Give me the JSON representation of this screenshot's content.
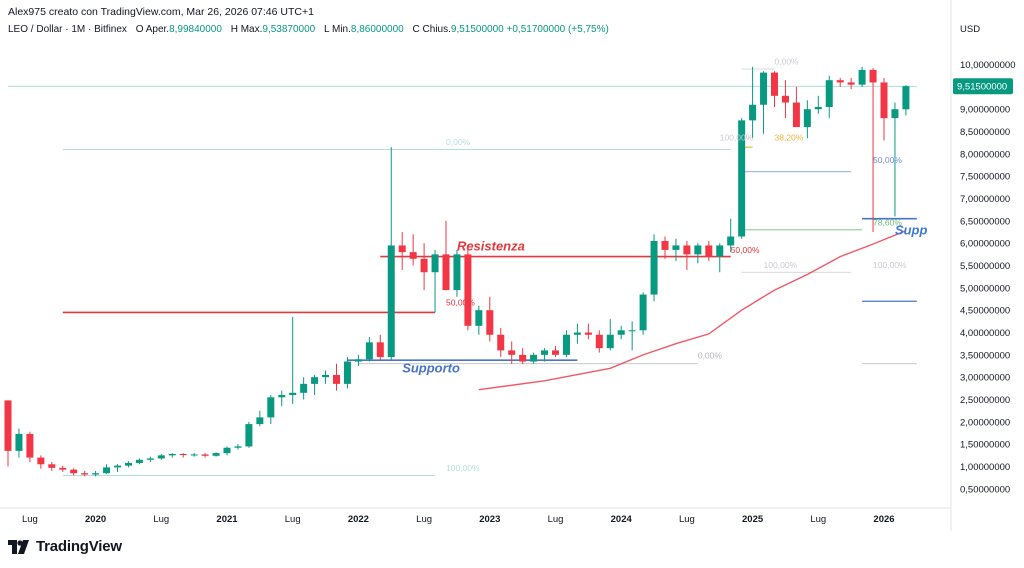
{
  "header": {
    "author_line": "Alex975 creato con TradingView.com, Mar 26, 2026 07:46 UTC+1"
  },
  "symbol": {
    "name": "LEO / Dollar · 1M · Bitfinex",
    "open_label": "O",
    "open_prefix": "Aper.",
    "open_value": "8,99840000",
    "high_label": "H",
    "high_prefix": "Max.",
    "high_value": "9,53870000",
    "low_label": "L",
    "low_prefix": "Min.",
    "low_value": "8,86000000",
    "close_label": "C",
    "close_prefix": "Chius.",
    "close_value": "9,51500000",
    "change": "+0,51700000 (+5,75%)"
  },
  "brand": {
    "name": "TradingView",
    "icon": "tradingview-logo-icon"
  },
  "colors": {
    "up": "#089981",
    "down": "#f23645",
    "ma": "#f05a66",
    "support": "#4a74c9",
    "resistance": "#e0393e",
    "bg": "#ffffff"
  },
  "chart_data": {
    "type": "candlestick",
    "currency_label": "USD",
    "y_scale": "linear",
    "ylim": [
      0.25,
      10.55
    ],
    "y_ticks": [
      {
        "v": 10.0,
        "label": "10,00000000"
      },
      {
        "v": 9.5,
        "label": "9,50000000"
      },
      {
        "v": 9.0,
        "label": "9,00000000"
      },
      {
        "v": 8.5,
        "label": "8,50000000"
      },
      {
        "v": 8.0,
        "label": "8,00000000"
      },
      {
        "v": 7.5,
        "label": "7,50000000"
      },
      {
        "v": 7.0,
        "label": "7,00000000"
      },
      {
        "v": 6.5,
        "label": "6,50000000"
      },
      {
        "v": 6.0,
        "label": "6,00000000"
      },
      {
        "v": 5.5,
        "label": "5,50000000"
      },
      {
        "v": 5.0,
        "label": "5,00000000"
      },
      {
        "v": 4.5,
        "label": "4,50000000"
      },
      {
        "v": 4.0,
        "label": "4,00000000"
      },
      {
        "v": 3.5,
        "label": "3,50000000"
      },
      {
        "v": 3.0,
        "label": "3,00000000"
      },
      {
        "v": 2.5,
        "label": "2,50000000"
      },
      {
        "v": 2.0,
        "label": "2,00000000"
      },
      {
        "v": 1.5,
        "label": "1,50000000"
      },
      {
        "v": 1.0,
        "label": "1,00000000"
      },
      {
        "v": 0.5,
        "label": "0,50000000"
      }
    ],
    "last_price": {
      "v": 9.515,
      "label": "9,51500000"
    },
    "x_start": "2019-05",
    "x_ticks": [
      {
        "date": "2019-07",
        "label": "Lug",
        "bold": false
      },
      {
        "date": "2020-01",
        "label": "2020",
        "bold": true
      },
      {
        "date": "2020-07",
        "label": "Lug",
        "bold": false
      },
      {
        "date": "2021-01",
        "label": "2021",
        "bold": true
      },
      {
        "date": "2021-07",
        "label": "Lug",
        "bold": false
      },
      {
        "date": "2022-01",
        "label": "2022",
        "bold": true
      },
      {
        "date": "2022-07",
        "label": "Lug",
        "bold": false
      },
      {
        "date": "2023-01",
        "label": "2023",
        "bold": true
      },
      {
        "date": "2023-07",
        "label": "Lug",
        "bold": false
      },
      {
        "date": "2024-01",
        "label": "2024",
        "bold": true
      },
      {
        "date": "2024-07",
        "label": "Lug",
        "bold": false
      },
      {
        "date": "2025-01",
        "label": "2025",
        "bold": true
      },
      {
        "date": "2025-07",
        "label": "Lug",
        "bold": false
      },
      {
        "date": "2026-01",
        "label": "2026",
        "bold": true
      }
    ],
    "candles": [
      {
        "d": "2019-05",
        "o": 2.48,
        "h": 2.48,
        "l": 1.0,
        "c": 1.35
      },
      {
        "d": "2019-06",
        "o": 1.35,
        "h": 1.85,
        "l": 1.2,
        "c": 1.73
      },
      {
        "d": "2019-07",
        "o": 1.73,
        "h": 1.78,
        "l": 1.1,
        "c": 1.2
      },
      {
        "d": "2019-08",
        "o": 1.2,
        "h": 1.25,
        "l": 0.95,
        "c": 1.05
      },
      {
        "d": "2019-09",
        "o": 1.05,
        "h": 1.1,
        "l": 0.9,
        "c": 0.97
      },
      {
        "d": "2019-10",
        "o": 0.97,
        "h": 1.02,
        "l": 0.88,
        "c": 0.93
      },
      {
        "d": "2019-11",
        "o": 0.93,
        "h": 0.96,
        "l": 0.8,
        "c": 0.85
      },
      {
        "d": "2019-12",
        "o": 0.85,
        "h": 0.9,
        "l": 0.78,
        "c": 0.82
      },
      {
        "d": "2020-01",
        "o": 0.82,
        "h": 0.9,
        "l": 0.78,
        "c": 0.85
      },
      {
        "d": "2020-02",
        "o": 0.85,
        "h": 1.05,
        "l": 0.83,
        "c": 0.98
      },
      {
        "d": "2020-03",
        "o": 0.98,
        "h": 1.05,
        "l": 0.88,
        "c": 1.02
      },
      {
        "d": "2020-04",
        "o": 1.02,
        "h": 1.12,
        "l": 0.98,
        "c": 1.08
      },
      {
        "d": "2020-05",
        "o": 1.08,
        "h": 1.18,
        "l": 1.05,
        "c": 1.15
      },
      {
        "d": "2020-06",
        "o": 1.15,
        "h": 1.22,
        "l": 1.1,
        "c": 1.18
      },
      {
        "d": "2020-07",
        "o": 1.18,
        "h": 1.28,
        "l": 1.15,
        "c": 1.25
      },
      {
        "d": "2020-08",
        "o": 1.25,
        "h": 1.3,
        "l": 1.2,
        "c": 1.28
      },
      {
        "d": "2020-09",
        "o": 1.28,
        "h": 1.3,
        "l": 1.2,
        "c": 1.26
      },
      {
        "d": "2020-10",
        "o": 1.26,
        "h": 1.3,
        "l": 1.22,
        "c": 1.27
      },
      {
        "d": "2020-11",
        "o": 1.27,
        "h": 1.3,
        "l": 1.2,
        "c": 1.24
      },
      {
        "d": "2020-12",
        "o": 1.24,
        "h": 1.32,
        "l": 1.22,
        "c": 1.3
      },
      {
        "d": "2021-01",
        "o": 1.3,
        "h": 1.45,
        "l": 1.25,
        "c": 1.42
      },
      {
        "d": "2021-02",
        "o": 1.42,
        "h": 1.5,
        "l": 1.38,
        "c": 1.45
      },
      {
        "d": "2021-03",
        "o": 1.45,
        "h": 2.0,
        "l": 1.42,
        "c": 1.95
      },
      {
        "d": "2021-04",
        "o": 1.95,
        "h": 2.25,
        "l": 1.9,
        "c": 2.1
      },
      {
        "d": "2021-05",
        "o": 2.1,
        "h": 2.6,
        "l": 1.95,
        "c": 2.55
      },
      {
        "d": "2021-06",
        "o": 2.55,
        "h": 2.7,
        "l": 2.35,
        "c": 2.6
      },
      {
        "d": "2021-07",
        "o": 2.6,
        "h": 4.35,
        "l": 2.4,
        "c": 2.65
      },
      {
        "d": "2021-08",
        "o": 2.65,
        "h": 3.0,
        "l": 2.5,
        "c": 2.85
      },
      {
        "d": "2021-09",
        "o": 2.85,
        "h": 3.05,
        "l": 2.6,
        "c": 3.0
      },
      {
        "d": "2021-10",
        "o": 3.0,
        "h": 3.15,
        "l": 2.85,
        "c": 3.05
      },
      {
        "d": "2021-11",
        "o": 3.05,
        "h": 3.3,
        "l": 2.7,
        "c": 2.85
      },
      {
        "d": "2021-12",
        "o": 2.85,
        "h": 3.45,
        "l": 2.75,
        "c": 3.35
      },
      {
        "d": "2022-01",
        "o": 3.35,
        "h": 3.5,
        "l": 3.25,
        "c": 3.4
      },
      {
        "d": "2022-02",
        "o": 3.4,
        "h": 3.9,
        "l": 3.35,
        "c": 3.78
      },
      {
        "d": "2022-03",
        "o": 3.78,
        "h": 3.95,
        "l": 3.38,
        "c": 3.45
      },
      {
        "d": "2022-04",
        "o": 3.45,
        "h": 8.15,
        "l": 3.38,
        "c": 5.95
      },
      {
        "d": "2022-05",
        "o": 5.95,
        "h": 6.25,
        "l": 5.4,
        "c": 5.8
      },
      {
        "d": "2022-06",
        "o": 5.8,
        "h": 6.2,
        "l": 5.5,
        "c": 5.65
      },
      {
        "d": "2022-07",
        "o": 5.65,
        "h": 6.0,
        "l": 4.95,
        "c": 5.35
      },
      {
        "d": "2022-08",
        "o": 5.35,
        "h": 5.85,
        "l": 4.45,
        "c": 5.75
      },
      {
        "d": "2022-09",
        "o": 5.75,
        "h": 6.5,
        "l": 4.95,
        "c": 4.95
      },
      {
        "d": "2022-10",
        "o": 4.95,
        "h": 5.85,
        "l": 4.8,
        "c": 5.75
      },
      {
        "d": "2022-11",
        "o": 5.75,
        "h": 5.85,
        "l": 4.05,
        "c": 4.15
      },
      {
        "d": "2022-12",
        "o": 4.15,
        "h": 4.6,
        "l": 3.95,
        "c": 4.5
      },
      {
        "d": "2023-01",
        "o": 4.5,
        "h": 4.8,
        "l": 3.8,
        "c": 3.95
      },
      {
        "d": "2023-02",
        "o": 3.95,
        "h": 4.1,
        "l": 3.45,
        "c": 3.6
      },
      {
        "d": "2023-03",
        "o": 3.6,
        "h": 3.8,
        "l": 3.3,
        "c": 3.5
      },
      {
        "d": "2023-04",
        "o": 3.5,
        "h": 3.65,
        "l": 3.3,
        "c": 3.35
      },
      {
        "d": "2023-05",
        "o": 3.35,
        "h": 3.55,
        "l": 3.3,
        "c": 3.5
      },
      {
        "d": "2023-06",
        "o": 3.5,
        "h": 3.65,
        "l": 3.35,
        "c": 3.6
      },
      {
        "d": "2023-07",
        "o": 3.6,
        "h": 3.7,
        "l": 3.45,
        "c": 3.5
      },
      {
        "d": "2023-08",
        "o": 3.5,
        "h": 4.05,
        "l": 3.45,
        "c": 3.95
      },
      {
        "d": "2023-09",
        "o": 3.95,
        "h": 4.2,
        "l": 3.75,
        "c": 4.0
      },
      {
        "d": "2023-10",
        "o": 4.0,
        "h": 4.2,
        "l": 3.85,
        "c": 3.95
      },
      {
        "d": "2023-11",
        "o": 3.95,
        "h": 4.05,
        "l": 3.55,
        "c": 3.65
      },
      {
        "d": "2023-12",
        "o": 3.65,
        "h": 4.3,
        "l": 3.6,
        "c": 3.95
      },
      {
        "d": "2024-01",
        "o": 3.95,
        "h": 4.15,
        "l": 3.85,
        "c": 4.05
      },
      {
        "d": "2024-02",
        "o": 4.05,
        "h": 4.25,
        "l": 3.6,
        "c": 4.05
      },
      {
        "d": "2024-03",
        "o": 4.05,
        "h": 4.9,
        "l": 3.95,
        "c": 4.85
      },
      {
        "d": "2024-04",
        "o": 4.85,
        "h": 6.2,
        "l": 4.7,
        "c": 6.05
      },
      {
        "d": "2024-05",
        "o": 6.05,
        "h": 6.15,
        "l": 5.65,
        "c": 5.85
      },
      {
        "d": "2024-06",
        "o": 5.85,
        "h": 6.1,
        "l": 5.6,
        "c": 5.95
      },
      {
        "d": "2024-07",
        "o": 5.95,
        "h": 6.05,
        "l": 5.4,
        "c": 5.75
      },
      {
        "d": "2024-08",
        "o": 5.75,
        "h": 6.0,
        "l": 5.55,
        "c": 5.95
      },
      {
        "d": "2024-09",
        "o": 5.95,
        "h": 6.05,
        "l": 5.6,
        "c": 5.7
      },
      {
        "d": "2024-10",
        "o": 5.7,
        "h": 6.0,
        "l": 5.35,
        "c": 5.95
      },
      {
        "d": "2024-11",
        "o": 5.95,
        "h": 6.55,
        "l": 5.8,
        "c": 6.15
      },
      {
        "d": "2024-12",
        "o": 6.15,
        "h": 8.8,
        "l": 6.1,
        "c": 8.75
      },
      {
        "d": "2025-01",
        "o": 8.75,
        "h": 9.95,
        "l": 8.35,
        "c": 9.1
      },
      {
        "d": "2025-02",
        "o": 9.1,
        "h": 9.85,
        "l": 8.45,
        "c": 9.82
      },
      {
        "d": "2025-03",
        "o": 9.82,
        "h": 9.85,
        "l": 9.05,
        "c": 9.3
      },
      {
        "d": "2025-04",
        "o": 9.3,
        "h": 9.65,
        "l": 8.8,
        "c": 9.15
      },
      {
        "d": "2025-05",
        "o": 9.15,
        "h": 9.5,
        "l": 8.6,
        "c": 8.6
      },
      {
        "d": "2025-06",
        "o": 8.6,
        "h": 9.2,
        "l": 8.35,
        "c": 9.0
      },
      {
        "d": "2025-07",
        "o": 9.0,
        "h": 9.3,
        "l": 8.9,
        "c": 9.05
      },
      {
        "d": "2025-08",
        "o": 9.05,
        "h": 9.75,
        "l": 8.8,
        "c": 9.65
      },
      {
        "d": "2025-09",
        "o": 9.65,
        "h": 9.7,
        "l": 9.5,
        "c": 9.6
      },
      {
        "d": "2025-10",
        "o": 9.6,
        "h": 9.7,
        "l": 9.45,
        "c": 9.55
      },
      {
        "d": "2025-11",
        "o": 9.55,
        "h": 9.95,
        "l": 9.5,
        "c": 9.88
      },
      {
        "d": "2025-12",
        "o": 9.88,
        "h": 9.92,
        "l": 6.25,
        "c": 9.6
      },
      {
        "d": "2026-01",
        "o": 9.6,
        "h": 9.7,
        "l": 8.3,
        "c": 8.8
      },
      {
        "d": "2026-02",
        "o": 8.8,
        "h": 9.15,
        "l": 6.6,
        "c": 9.0
      },
      {
        "d": "2026-03",
        "o": 8.998,
        "h": 9.5387,
        "l": 8.86,
        "c": 9.515
      }
    ],
    "moving_average": [
      {
        "d": "2022-12",
        "v": 2.72
      },
      {
        "d": "2023-06",
        "v": 2.92
      },
      {
        "d": "2023-12",
        "v": 3.2
      },
      {
        "d": "2024-03",
        "v": 3.5
      },
      {
        "d": "2024-06",
        "v": 3.75
      },
      {
        "d": "2024-09",
        "v": 3.97
      },
      {
        "d": "2024-12",
        "v": 4.5
      },
      {
        "d": "2025-03",
        "v": 4.95
      },
      {
        "d": "2025-06",
        "v": 5.3
      },
      {
        "d": "2025-09",
        "v": 5.7
      },
      {
        "d": "2025-12",
        "v": 5.98
      },
      {
        "d": "2026-03",
        "v": 6.28
      }
    ],
    "lines": [
      {
        "name": "resistance-line",
        "y": 5.7,
        "d0": "2022-03",
        "d1": "2024-11",
        "color": "#e0393e",
        "width": 1.6
      },
      {
        "name": "resistance-line-old",
        "y": 4.45,
        "d0": "2019-10",
        "d1": "2022-08",
        "color": "#e0393e",
        "width": 1.6
      },
      {
        "name": "support-line",
        "y": 3.38,
        "d0": "2021-12",
        "d1": "2023-09",
        "color": "#4a74c9",
        "width": 1.6
      },
      {
        "name": "support-line-recent",
        "y": 6.55,
        "d0": "2025-11",
        "d1": "2026-04",
        "color": "#4a74c9",
        "width": 1.6
      },
      {
        "name": "support-line-lower",
        "y": 4.7,
        "d0": "2025-11",
        "d1": "2026-04",
        "color": "#4a74c9",
        "width": 1.3
      },
      {
        "name": "price-level-line",
        "y": 9.515,
        "d0": "2019-05",
        "d1": "2026-04",
        "color": "#8fd3c4",
        "width": 0.8
      },
      {
        "name": "level-3-3",
        "y": 3.3,
        "d0": "2025-11",
        "d1": "2026-04",
        "color": "#b0b3bb",
        "width": 0.8
      },
      {
        "name": "fib-top-line",
        "y": 8.1,
        "d0": "2019-10",
        "d1": "2024-11",
        "color": "#a8dcd2",
        "width": 0.8
      },
      {
        "name": "fib-100-bottom",
        "y": 0.8,
        "d0": "2019-10",
        "d1": "2022-08",
        "color": "#a8dcd2",
        "width": 0.8
      },
      {
        "name": "fib-0-line",
        "y": 3.3,
        "d0": "2022-01",
        "d1": "2024-08",
        "color": "#b0b3bb",
        "width": 0.8
      },
      {
        "name": "fib-100-mid",
        "y": 5.35,
        "d0": "2024-12",
        "d1": "2025-10",
        "color": "#c8cbd1",
        "width": 0.8
      },
      {
        "name": "fib-0-top",
        "y": 9.9,
        "d0": "2024-12",
        "d1": "2025-03",
        "color": "#c8cbd1",
        "width": 0.8
      },
      {
        "name": "fib-38-line",
        "y": 8.15,
        "d0": "2024-12",
        "d1": "2025-01",
        "color": "#f0b43c",
        "width": 1.2
      },
      {
        "name": "fib-50-line",
        "y": 7.6,
        "d0": "2024-12",
        "d1": "2025-10",
        "color": "#6f8fd3",
        "width": 0.8
      },
      {
        "name": "fib-78-line",
        "y": 6.3,
        "d0": "2024-12",
        "d1": "2025-11",
        "color": "#6fbf73",
        "width": 0.9
      }
    ],
    "annotations": [
      {
        "name": "resistenza-label",
        "text": "Resistenza",
        "d": "2022-10",
        "y": 5.84,
        "color": "#e0393e",
        "size": 13,
        "bold": true,
        "italic": true
      },
      {
        "name": "supporto-label",
        "text": "Supporto",
        "d": "2022-05",
        "y": 3.1,
        "color": "#4a74c9",
        "size": 13,
        "bold": true,
        "italic": true
      },
      {
        "name": "supporto-label-right",
        "text": "Supp",
        "d": "2026-02",
        "y": 6.2,
        "color": "#3d7bd9",
        "size": 13,
        "bold": true,
        "italic": true
      },
      {
        "name": "fib-label-50-resistance",
        "text": "50,00%",
        "d": "2022-09",
        "y": 4.6,
        "color": "#e0393e",
        "size": 8.5
      },
      {
        "name": "fib-label-50-mid",
        "text": "50,00%",
        "d": "2024-11",
        "y": 5.78,
        "color": "#e0393e",
        "size": 8.5
      },
      {
        "name": "fib-label-0-top-left",
        "text": "0,00%",
        "d": "2022-09",
        "y": 8.2,
        "color": "#b9dfd8",
        "size": 8.5
      },
      {
        "name": "fib-label-100-bottom",
        "text": "100,00%",
        "d": "2022-09",
        "y": 0.9,
        "color": "#b9dfd8",
        "size": 8.5
      },
      {
        "name": "fib-label-0-bottom",
        "text": "0,00%",
        "d": "2024-08",
        "y": 3.42,
        "color": "#b0b3bb",
        "size": 8.5
      },
      {
        "name": "fib-label-100-mid",
        "text": "100,00%",
        "d": "2025-02",
        "y": 5.45,
        "color": "#c8cbd1",
        "size": 8.5
      },
      {
        "name": "fib-label-100-right",
        "text": "100,00%",
        "d": "2025-12",
        "y": 5.45,
        "color": "#c8cbd1",
        "size": 8.5
      },
      {
        "name": "fib-label-0-top",
        "text": "0,00%",
        "d": "2025-03",
        "y": 10.0,
        "color": "#c8cbd1",
        "size": 8.5
      },
      {
        "name": "fib-label-100-top",
        "text": "100,00%",
        "d": "2024-10",
        "y": 8.3,
        "color": "#c8cbd1",
        "size": 8.5
      },
      {
        "name": "fib-label-38",
        "text": "38,20%",
        "d": "2025-03",
        "y": 8.3,
        "color": "#f0b43c",
        "size": 8.5
      },
      {
        "name": "fib-label-50-right",
        "text": "50,00%",
        "d": "2025-12",
        "y": 7.8,
        "color": "#6f8fd3",
        "size": 8.5
      },
      {
        "name": "fib-label-78",
        "text": "78,60%",
        "d": "2025-12",
        "y": 6.4,
        "color": "#6fbf73",
        "size": 8.5
      }
    ]
  }
}
